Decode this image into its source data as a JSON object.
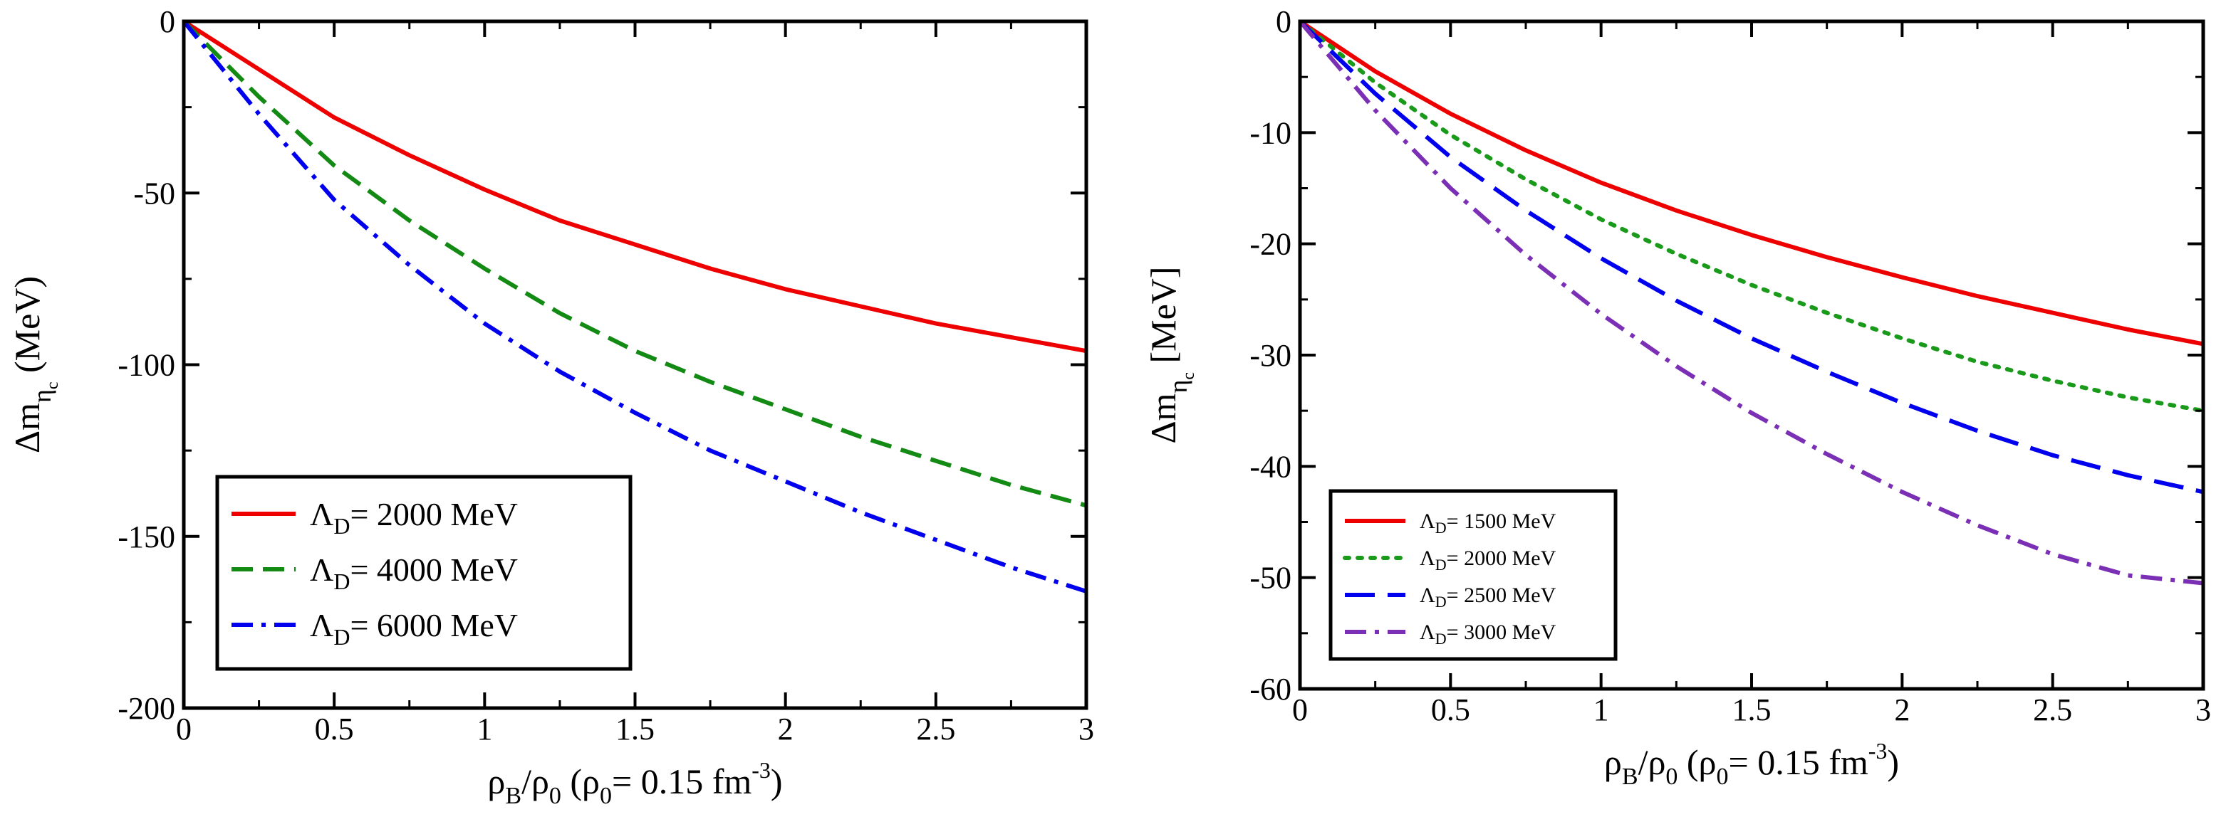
{
  "chart_data": [
    {
      "type": "line",
      "xlabel": {
        "main": "ρ",
        "sub1": "B",
        "sep": "/ρ",
        "sub2": "0",
        "paren": " (ρ",
        "sub3": "0",
        "rest": "= 0.15 fm",
        "sup": "-3",
        "close": ")"
      },
      "ylabel": {
        "prefix": "Δm",
        "sub": "η",
        "subsub": "c",
        "unit": "(MeV)"
      },
      "xlim": [
        0,
        3
      ],
      "ylim": [
        -200,
        0
      ],
      "xticks": [
        "0",
        "0.5",
        "1",
        "1.5",
        "2",
        "2.5",
        "3"
      ],
      "yticks": [
        "0",
        "-50",
        "-100",
        "-150",
        "-200"
      ],
      "legend_position": "bottom-left",
      "x": [
        0,
        0.25,
        0.5,
        0.75,
        1.0,
        1.25,
        1.5,
        1.75,
        2.0,
        2.25,
        2.5,
        2.75,
        3.0
      ],
      "series": [
        {
          "name": "Λ_D = 2000 MeV",
          "lambda": "Λ",
          "sub": "D",
          "label": "= 2000 MeV",
          "color": "#ee0000",
          "dash": "solid",
          "values": [
            0,
            -14,
            -28,
            -39,
            -49,
            -58,
            -65,
            -72,
            -78,
            -83,
            -88,
            -92,
            -96
          ]
        },
        {
          "name": "Λ_D = 4000 MeV",
          "lambda": "Λ",
          "sub": "D",
          "label": "= 4000 MeV",
          "color": "#138a13",
          "dash": "dashed",
          "values": [
            0,
            -22,
            -42,
            -58,
            -72,
            -85,
            -96,
            -105,
            -113,
            -121,
            -128,
            -135,
            -141
          ]
        },
        {
          "name": "Λ_D = 6000 MeV",
          "lambda": "Λ",
          "sub": "D",
          "label": "= 6000 MeV",
          "color": "#0000ee",
          "dash": "dashdot",
          "values": [
            0,
            -27,
            -52,
            -71,
            -88,
            -102,
            -114,
            -125,
            -134,
            -143,
            -151,
            -159,
            -166
          ]
        }
      ]
    },
    {
      "type": "line",
      "xlabel": {
        "main": "ρ",
        "sub1": "B",
        "sep": "/ρ",
        "sub2": "0",
        "paren": " (ρ",
        "sub3": "0",
        "rest": "= 0.15 fm",
        "sup": "-3",
        "close": ")"
      },
      "ylabel": {
        "prefix": "Δm",
        "sub": "η",
        "subsub": "c",
        "unit": "[MeV]"
      },
      "xlim": [
        0,
        3
      ],
      "ylim": [
        -60,
        0
      ],
      "xticks": [
        "0",
        "0.5",
        "1",
        "1.5",
        "2",
        "2.5",
        "3"
      ],
      "yticks": [
        "0",
        "-10",
        "-20",
        "-30",
        "-40",
        "-50",
        "-60"
      ],
      "legend_position": "bottom-left",
      "x": [
        0,
        0.25,
        0.5,
        0.75,
        1.0,
        1.25,
        1.5,
        1.75,
        2.0,
        2.25,
        2.5,
        2.75,
        3.0
      ],
      "series": [
        {
          "name": "Λ_D = 1500 MeV",
          "lambda": "Λ",
          "sub": "D",
          "label": "= 1500 MeV",
          "color": "#ee0000",
          "dash": "solid",
          "values": [
            0,
            -4.5,
            -8.3,
            -11.6,
            -14.5,
            -17.0,
            -19.2,
            -21.2,
            -23.0,
            -24.7,
            -26.2,
            -27.7,
            -29.0
          ]
        },
        {
          "name": "Λ_D = 2000 MeV",
          "lambda": "Λ",
          "sub": "D",
          "label": "= 2000 MeV",
          "color": "#1a9a1a",
          "dash": "dotted",
          "values": [
            0,
            -5.5,
            -10.2,
            -14.2,
            -17.8,
            -20.9,
            -23.7,
            -26.2,
            -28.5,
            -30.6,
            -32.3,
            -33.8,
            -35.0
          ]
        },
        {
          "name": "Λ_D = 2500 MeV",
          "lambda": "Λ",
          "sub": "D",
          "label": "= 2500 MeV",
          "color": "#0000ee",
          "dash": "longdash",
          "values": [
            0,
            -6.5,
            -12.2,
            -17.0,
            -21.3,
            -25.1,
            -28.5,
            -31.5,
            -34.3,
            -36.8,
            -39.0,
            -40.8,
            -42.3
          ]
        },
        {
          "name": "Λ_D = 3000 MeV",
          "lambda": "Λ",
          "sub": "D",
          "label": "= 3000 MeV",
          "color": "#7b2fb5",
          "dash": "dashdot",
          "values": [
            0,
            -8.0,
            -15.0,
            -21.0,
            -26.3,
            -31.0,
            -35.2,
            -38.9,
            -42.3,
            -45.3,
            -47.9,
            -49.8,
            -50.5
          ]
        }
      ]
    }
  ]
}
